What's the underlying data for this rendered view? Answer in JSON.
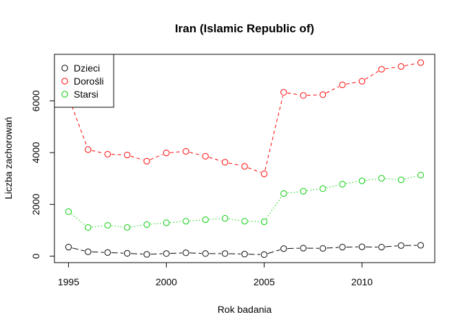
{
  "chart_data": {
    "type": "line",
    "title": "Iran (Islamic Republic of)",
    "xlabel": "Rok badania",
    "ylabel": "Liczba zachorowań",
    "x": [
      1995,
      1996,
      1997,
      1998,
      1999,
      2000,
      2001,
      2002,
      2003,
      2004,
      2005,
      2006,
      2007,
      2008,
      2009,
      2010,
      2011,
      2012,
      2013
    ],
    "xlim": [
      1994.28,
      2013.72
    ],
    "ylim": [
      -250,
      7800
    ],
    "xticks": [
      1995,
      2000,
      2005,
      2010
    ],
    "yticks": [
      0,
      2000,
      4000,
      6000
    ],
    "grid": false,
    "legend_position": "top-left",
    "series": [
      {
        "name": "Dzieci",
        "color": "#000000",
        "line_style": "longdash",
        "values": [
          350,
          170,
          140,
          110,
          70,
          100,
          130,
          100,
          100,
          80,
          60,
          290,
          310,
          300,
          350,
          360,
          350,
          410,
          420
        ]
      },
      {
        "name": "Dorośli",
        "color": "#ff0000",
        "line_style": "dashed",
        "values": [
          6150,
          4120,
          3940,
          3910,
          3670,
          3990,
          4050,
          3860,
          3630,
          3470,
          3180,
          6330,
          6210,
          6240,
          6620,
          6760,
          7220,
          7330,
          7480
        ]
      },
      {
        "name": "Starsi",
        "color": "#00cd00",
        "line_style": "dotted",
        "values": [
          1720,
          1110,
          1190,
          1110,
          1220,
          1290,
          1350,
          1410,
          1460,
          1350,
          1330,
          2420,
          2510,
          2610,
          2780,
          2910,
          3010,
          2950,
          3130
        ]
      }
    ]
  }
}
